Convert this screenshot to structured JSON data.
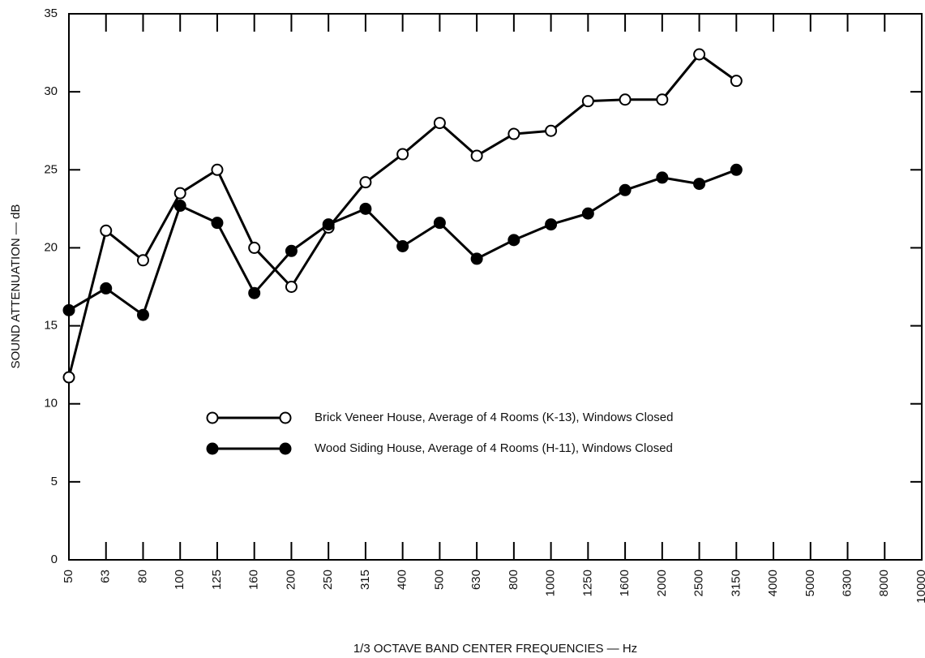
{
  "chart_data": {
    "type": "line",
    "xlabel": "1/3 OCTAVE BAND CENTER FREQUENCIES — Hz",
    "ylabel": "SOUND ATTENUATION — dB",
    "categories": [
      "50",
      "63",
      "80",
      "100",
      "125",
      "160",
      "200",
      "250",
      "315",
      "400",
      "500",
      "630",
      "800",
      "1000",
      "1250",
      "1600",
      "2000",
      "2500",
      "3150",
      "4000",
      "5000",
      "6300",
      "8000",
      "10000"
    ],
    "series": [
      {
        "name": "Brick Veneer House, Average of 4 Rooms (K-13), Windows Closed",
        "color": "#000000",
        "marker": "open",
        "values": [
          11.7,
          21.1,
          19.2,
          23.5,
          25.0,
          20.0,
          17.5,
          21.3,
          24.2,
          26.0,
          28.0,
          25.9,
          27.3,
          27.5,
          29.4,
          29.5,
          29.5,
          32.4,
          30.7,
          null,
          null,
          null,
          null,
          null
        ]
      },
      {
        "name": "Wood Siding House, Average of 4 Rooms (H-11), Windows Closed",
        "color": "#000000",
        "marker": "filled",
        "values": [
          16.0,
          17.4,
          15.7,
          22.7,
          21.6,
          17.1,
          19.8,
          21.5,
          22.5,
          20.1,
          21.6,
          19.3,
          20.5,
          21.5,
          22.2,
          23.7,
          24.5,
          24.1,
          25.0,
          null,
          null,
          null,
          null,
          null
        ]
      }
    ],
    "ylim": [
      0,
      35
    ],
    "yticks": [
      0,
      5,
      10,
      15,
      20,
      25,
      30,
      35
    ],
    "grid": false
  }
}
